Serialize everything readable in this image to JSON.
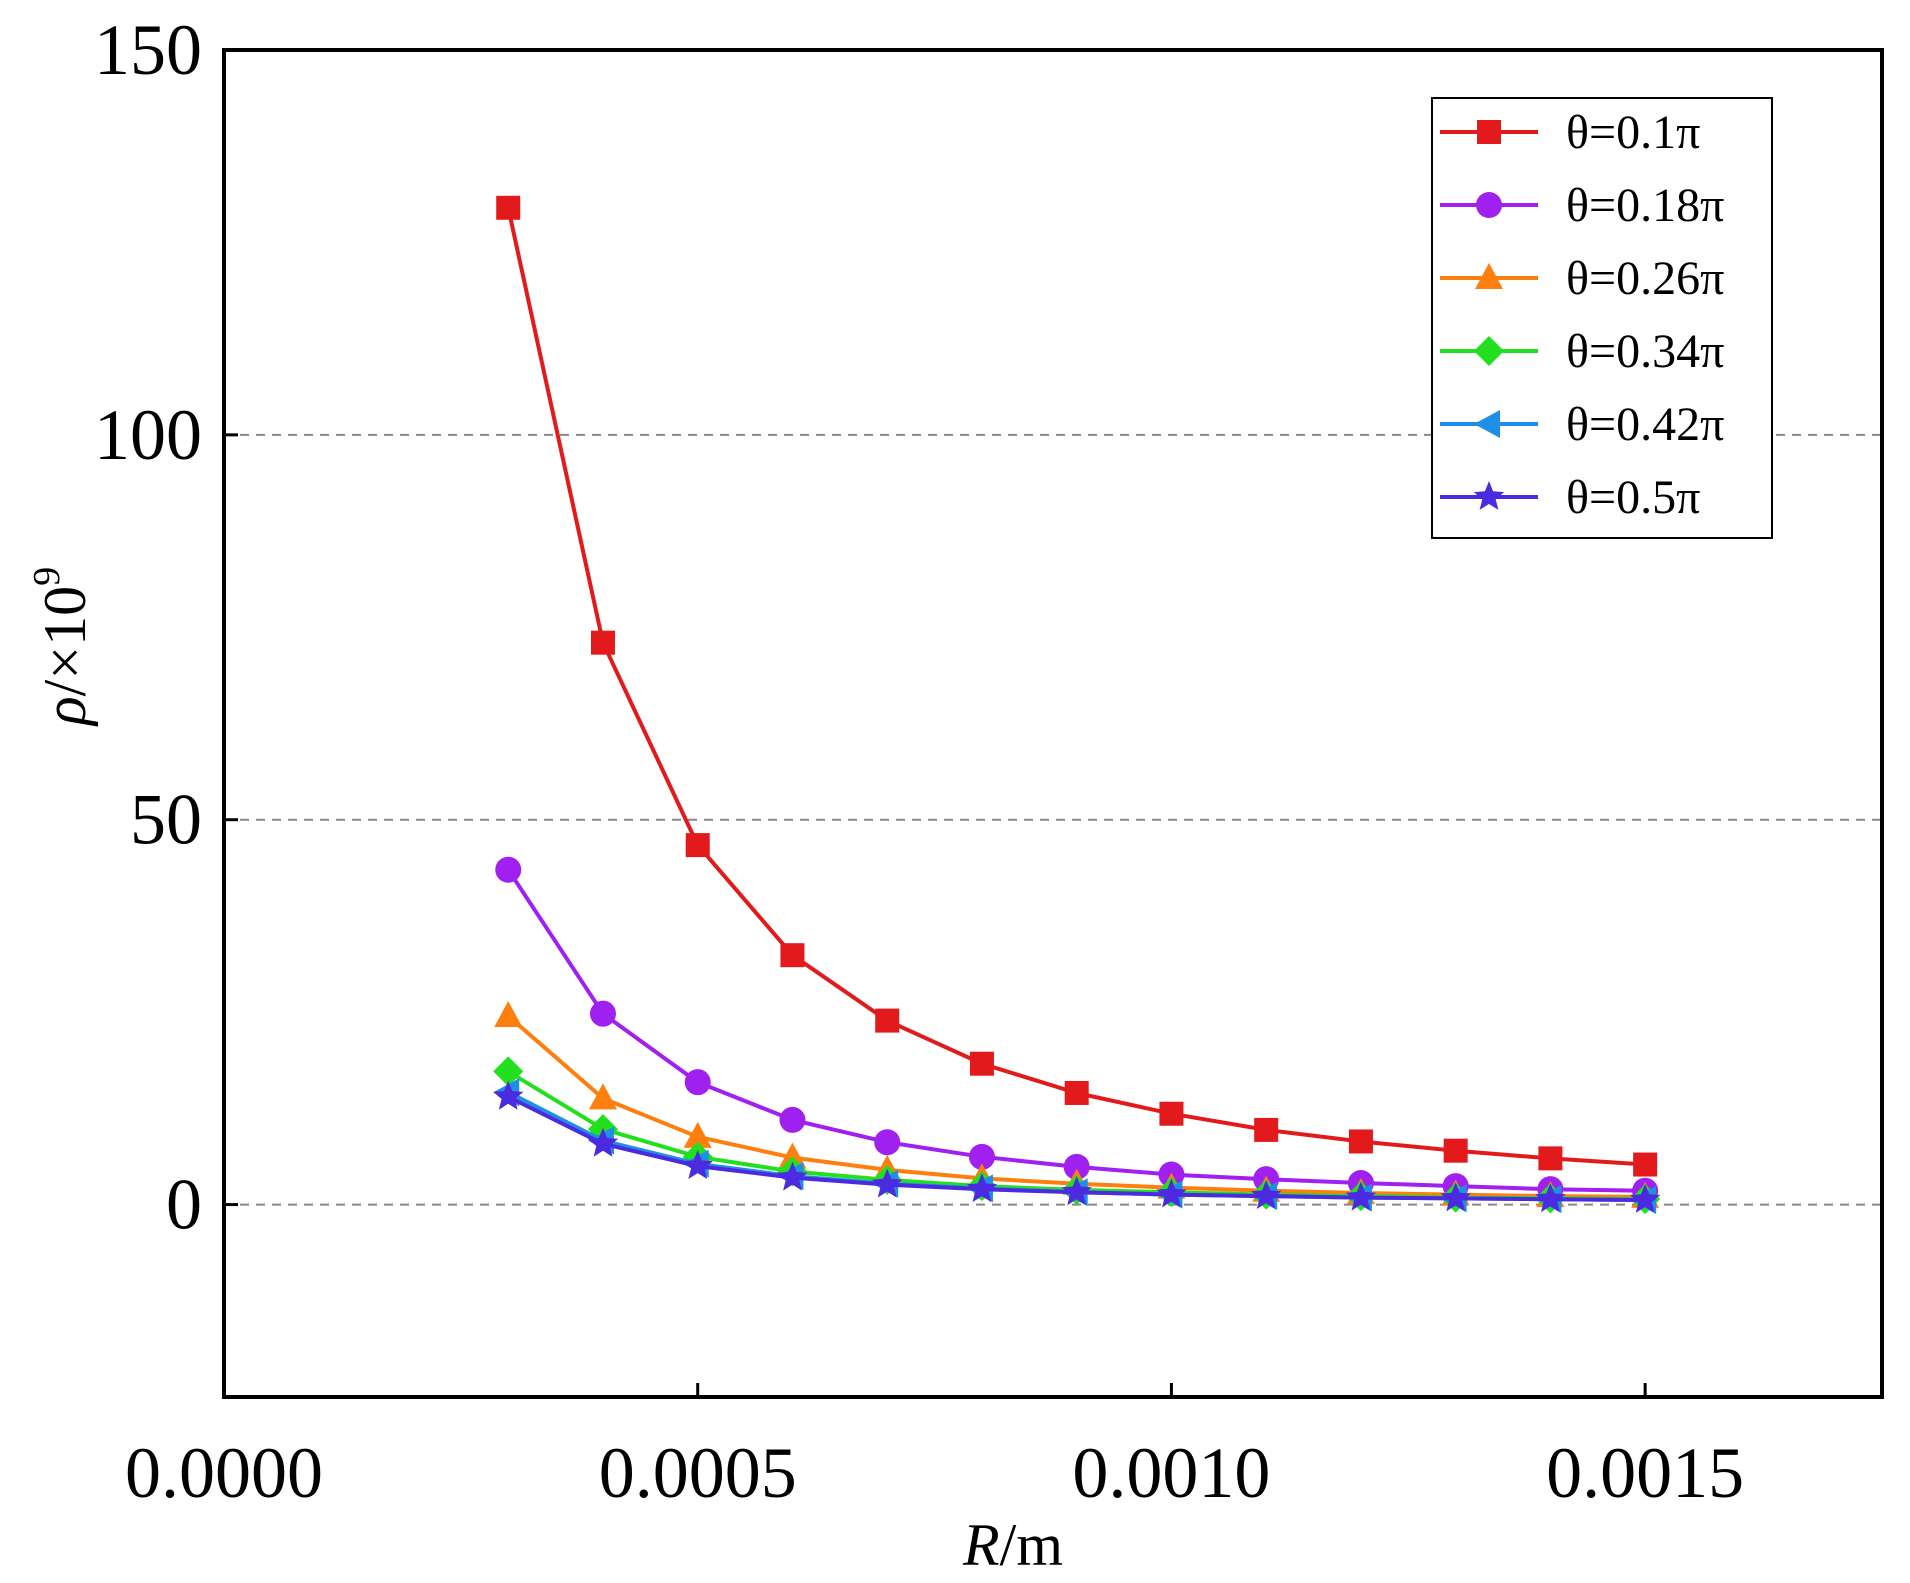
{
  "chart_data": {
    "type": "line",
    "title": "",
    "xlabel_var": "R",
    "xlabel_unit": "/m",
    "ylabel_var": "ρ",
    "ylabel_unit": "/×10",
    "ylabel_exp": "9",
    "xlim": [
      0,
      0.00175
    ],
    "ylim": [
      -25,
      150
    ],
    "xticks": [
      {
        "value": 0.0,
        "label": "0.0000"
      },
      {
        "value": 0.0005,
        "label": "0.0005"
      },
      {
        "value": 0.001,
        "label": "0.0010"
      },
      {
        "value": 0.0015,
        "label": "0.0015"
      }
    ],
    "yticks": [
      {
        "value": 0,
        "label": "0"
      },
      {
        "value": 50,
        "label": "50"
      },
      {
        "value": 100,
        "label": "100"
      },
      {
        "value": 150,
        "label": "150"
      }
    ],
    "grid_y_values": [
      0,
      50,
      100
    ],
    "legend_position": "top-right",
    "x": [
      0.0003,
      0.0004,
      0.0005,
      0.0006,
      0.0007,
      0.0008,
      0.0009,
      0.001,
      0.0011,
      0.0012,
      0.0013,
      0.0014,
      0.0015
    ],
    "series": [
      {
        "name": "θ=0.1π",
        "color": "#e31a1c",
        "marker": "square",
        "values": [
          129.5,
          73,
          46.7,
          32.4,
          23.9,
          18.3,
          14.5,
          11.8,
          9.7,
          8.2,
          7.0,
          6.0,
          5.2
        ]
      },
      {
        "name": "θ=0.18π",
        "color": "#a020f0",
        "marker": "circle",
        "values": [
          43.5,
          24.8,
          15.9,
          11.0,
          8.1,
          6.2,
          4.9,
          3.9,
          3.3,
          2.8,
          2.4,
          2.0,
          1.8
        ]
      },
      {
        "name": "θ=0.26π",
        "color": "#ff7f0e",
        "marker": "triangle-up",
        "values": [
          24.5,
          13.8,
          8.8,
          6.1,
          4.5,
          3.4,
          2.7,
          2.2,
          1.8,
          1.5,
          1.3,
          1.1,
          1.0
        ]
      },
      {
        "name": "θ=0.34π",
        "color": "#22e01e",
        "marker": "diamond",
        "values": [
          17.3,
          9.8,
          6.2,
          4.3,
          3.2,
          2.4,
          1.9,
          1.6,
          1.3,
          1.1,
          0.9,
          0.8,
          0.7
        ]
      },
      {
        "name": "θ=0.42π",
        "color": "#1f8fe5",
        "marker": "triangle-left",
        "values": [
          14.6,
          8.3,
          5.3,
          3.7,
          2.7,
          2.1,
          1.6,
          1.3,
          1.1,
          0.9,
          0.8,
          0.7,
          0.6
        ]
      },
      {
        "name": "θ=0.5π",
        "color": "#4b2ae0",
        "marker": "star",
        "values": [
          14.0,
          7.9,
          5.0,
          3.5,
          2.6,
          2.0,
          1.6,
          1.3,
          1.1,
          0.9,
          0.8,
          0.7,
          0.6
        ]
      }
    ]
  }
}
